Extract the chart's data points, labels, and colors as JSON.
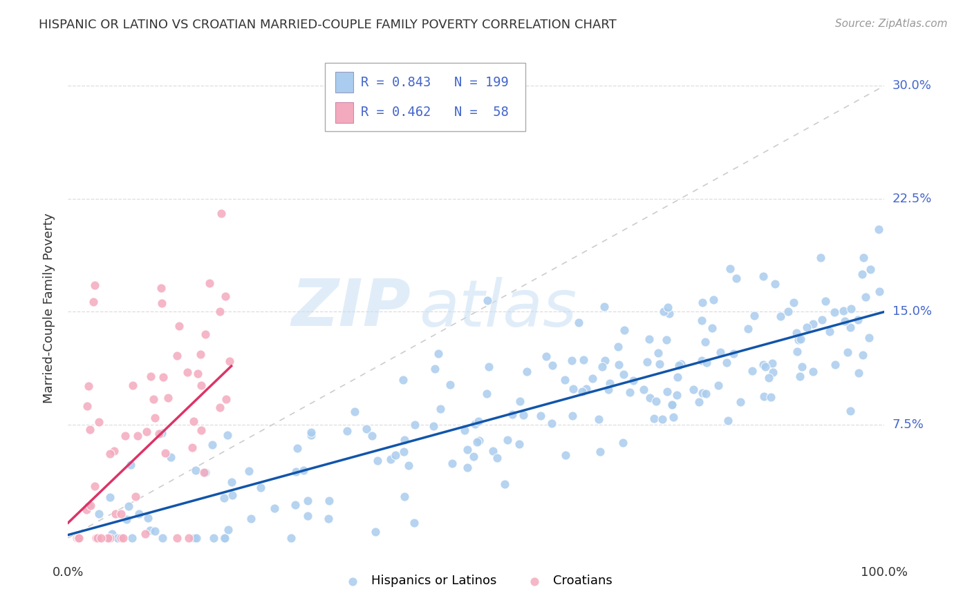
{
  "title": "HISPANIC OR LATINO VS CROATIAN MARRIED-COUPLE FAMILY POVERTY CORRELATION CHART",
  "source": "Source: ZipAtlas.com",
  "ylabel": "Married-Couple Family Poverty",
  "xlim": [
    0,
    1.0
  ],
  "ylim": [
    -0.015,
    0.32
  ],
  "yticks": [
    0.075,
    0.15,
    0.225,
    0.3
  ],
  "ytick_labels": [
    "7.5%",
    "15.0%",
    "22.5%",
    "30.0%"
  ],
  "watermark_zip": "ZIP",
  "watermark_atlas": "atlas",
  "blue_color": "#aaccee",
  "pink_color": "#f4aabe",
  "blue_line_color": "#1155aa",
  "pink_line_color": "#dd3366",
  "diagonal_color": "#cccccc",
  "legend_text_color": "#4466cc",
  "blue_R": 0.843,
  "blue_N": 199,
  "pink_R": 0.462,
  "pink_N": 58,
  "blue_slope": 0.148,
  "blue_intercept": 0.002,
  "pink_slope": 0.52,
  "pink_intercept": 0.01,
  "background_color": "#ffffff",
  "grid_color": "#dddddd",
  "tick_label_color": "#4466cc"
}
